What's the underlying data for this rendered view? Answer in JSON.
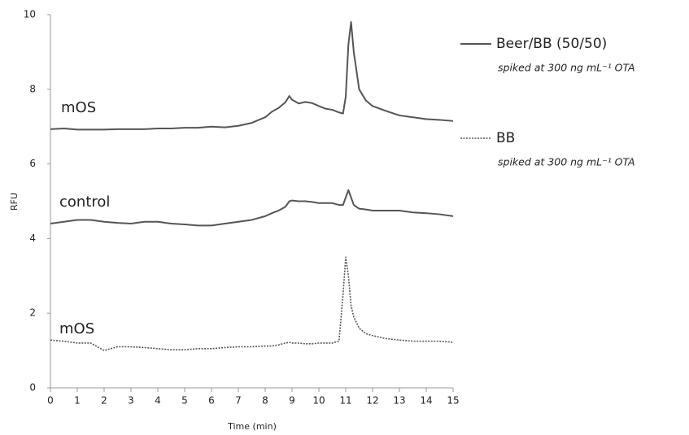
{
  "chart_data": {
    "type": "line",
    "x_label": "Time (min)",
    "y_label": "RFU",
    "x": [
      0,
      0.5,
      1,
      1.5,
      2,
      2.5,
      3,
      3.5,
      4,
      4.5,
      5,
      5.5,
      6,
      6.5,
      7,
      7.5,
      8,
      8.25,
      8.5,
      8.75,
      8.9,
      9,
      9.25,
      9.5,
      9.75,
      10,
      10.25,
      10.5,
      10.75,
      10.9,
      11,
      11.1,
      11.2,
      11.3,
      11.5,
      11.75,
      12,
      12.5,
      13,
      13.5,
      14,
      14.5,
      15
    ],
    "series": [
      {
        "name": "mOS",
        "color": "#555555",
        "line_style": "solid",
        "values": [
          6.93,
          6.95,
          6.92,
          6.92,
          6.92,
          6.93,
          6.93,
          6.93,
          6.95,
          6.95,
          6.97,
          6.97,
          7.0,
          6.98,
          7.02,
          7.1,
          7.25,
          7.4,
          7.5,
          7.65,
          7.82,
          7.72,
          7.62,
          7.66,
          7.63,
          7.55,
          7.48,
          7.45,
          7.38,
          7.35,
          7.8,
          9.2,
          9.8,
          9.0,
          8.0,
          7.7,
          7.55,
          7.42,
          7.3,
          7.25,
          7.2,
          7.18,
          7.15
        ]
      },
      {
        "name": "control",
        "color": "#555555",
        "line_style": "solid",
        "values": [
          4.4,
          4.45,
          4.5,
          4.5,
          4.45,
          4.42,
          4.4,
          4.45,
          4.45,
          4.4,
          4.38,
          4.35,
          4.35,
          4.4,
          4.45,
          4.5,
          4.6,
          4.68,
          4.75,
          4.85,
          5.0,
          5.02,
          5.0,
          5.0,
          4.98,
          4.95,
          4.95,
          4.95,
          4.9,
          4.9,
          5.1,
          5.3,
          5.1,
          4.9,
          4.8,
          4.78,
          4.75,
          4.75,
          4.75,
          4.7,
          4.68,
          4.65,
          4.6
        ]
      },
      {
        "name": "mOS",
        "color": "#555555",
        "line_style": "dotted",
        "values": [
          1.28,
          1.25,
          1.2,
          1.2,
          1.0,
          1.1,
          1.1,
          1.08,
          1.05,
          1.02,
          1.02,
          1.05,
          1.05,
          1.08,
          1.1,
          1.1,
          1.12,
          1.12,
          1.15,
          1.2,
          1.22,
          1.2,
          1.2,
          1.18,
          1.18,
          1.2,
          1.2,
          1.2,
          1.25,
          2.5,
          3.5,
          3.0,
          2.2,
          1.9,
          1.6,
          1.45,
          1.4,
          1.32,
          1.28,
          1.25,
          1.25,
          1.25,
          1.22
        ]
      }
    ],
    "legend": [
      {
        "label": "Beer/BB (50/50)",
        "note": "spiked at 300 ng mL⁻¹ OTA",
        "line_style": "solid",
        "color": "#555555"
      },
      {
        "label": "BB",
        "note": "spiked at 300 ng mL⁻¹ OTA",
        "line_style": "dotted",
        "color": "#555555"
      }
    ],
    "xlim": [
      0,
      15
    ],
    "xticks": [
      0,
      1,
      2,
      3,
      4,
      5,
      6,
      7,
      8,
      9,
      10,
      11,
      12,
      13,
      14,
      15
    ],
    "ylim": [
      0,
      10
    ],
    "yticks": [
      0,
      2,
      4,
      6,
      8,
      10
    ],
    "grid": false
  }
}
